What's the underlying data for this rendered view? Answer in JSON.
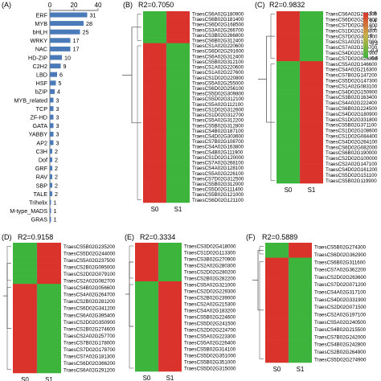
{
  "panels": {
    "A": {
      "letter": "(A)"
    },
    "B": {
      "letter": "(B)",
      "r2": "R2=0.7050",
      "s0": "S0",
      "s1": "S1"
    },
    "C": {
      "letter": "(C)",
      "r2": "R2=0.9832",
      "s0": "S0",
      "s1": "S1"
    },
    "D": {
      "letter": "(D)",
      "r2": "R2=0.9158",
      "s0": "S0",
      "s1": "S1"
    },
    "E": {
      "letter": "(E)",
      "r2": "R2=0.3334",
      "s0": "S0",
      "s1": "S1"
    },
    "F": {
      "letter": "(F)",
      "r2": "R2=0.5889",
      "s0": "S0",
      "s1": "S1"
    }
  },
  "colors": {
    "red": "#d9332b",
    "green": "#3db53d",
    "bar": "#4a7ab7"
  },
  "legend": {
    "ticks": [
      "0.6",
      "0.4",
      "0.2",
      "0",
      "-0.2",
      "-0.4",
      "-0.6"
    ]
  },
  "chart_data": {
    "type": "bar",
    "orientation": "horizontal",
    "categories": [
      "ERF",
      "MYB",
      "bHLH",
      "WRKY",
      "NAC",
      "HD-ZIP",
      "C2H2",
      "LBD",
      "HSF",
      "bZIP",
      "MYB_related",
      "TCP",
      "ZF-HD",
      "GATA",
      "YABBY",
      "AP2",
      "C3H",
      "Dof",
      "GRF",
      "RAV",
      "SBP",
      "TALE",
      "Trihelix",
      "M-type_MADS",
      "GRAS"
    ],
    "values": [
      31,
      28,
      25,
      17,
      17,
      10,
      9,
      6,
      5,
      4,
      3,
      3,
      3,
      3,
      3,
      3,
      2,
      2,
      2,
      2,
      2,
      2,
      1,
      1,
      1
    ],
    "xlim": [
      0,
      40
    ],
    "xticks": [
      "0",
      "20",
      "40"
    ]
  },
  "genes": {
    "B": [
      "TraesCS6A02G180900",
      "TraesCS6B02G181400",
      "TraesCS6D02G168500",
      "TraesCS3A02G266700",
      "TraesCS3B02G266800",
      "TraesCS6B02G312400",
      "TraesCS1A02G220600",
      "TraesCS6D02G291600",
      "TraesCS6A02G312400",
      "TraesCS5B02G312100",
      "TraesCS1A02G220600",
      "TraesCS1A02G227600",
      "TraesCS1D02G220800",
      "TraesCS5A02G255000",
      "TraesCS6D02G256100",
      "TraesCS5D02G309800",
      "TraesCS5D02G312100",
      "TraesCS5A02G112100",
      "TraesCS1D02G312600",
      "TraesCS1D02G312700",
      "TraesCS5A02G312200",
      "TraesCS5B02G312800",
      "TraesCS4B02G187100",
      "TraesCS4D02G303600",
      "TraesCS7B02G108700",
      "TraesCS4A02G163800",
      "TraesCS4B02G111900",
      "TraesCS1D02G120000",
      "TraesCS7A02G268100",
      "TraesCS4A02G128100",
      "TraesCS5A02G226100",
      "TraesCS7D02G312500",
      "TraesCS5B02G312000",
      "TraesCS5D02G111400",
      "TraesCS5B02G121000",
      "TraesCS6D02G121100"
    ],
    "C": [
      "TraesCS6A02G265300",
      "TraesCS6D02G277800",
      "TraesCS7D02G371800",
      "TraesCS1D02G143800",
      "TraesCS7D02G340300",
      "TraesCS1A02G177000",
      "TraesCS7A02G165700",
      "TraesCS4D02G177900",
      "TraesCS7D02G026800",
      "TraesCS5A02G146600",
      "TraesCS4A02G216300",
      "TraesCS7B02G147200",
      "TraesCS5D02G147300",
      "TraesCS1A02G083100",
      "TraesCS4D02G150900",
      "TraesCS3B02G163400",
      "TraesCS4A02G222400",
      "TraesCS6B02G224500",
      "TraesCS4D02G180900",
      "TraesCS1D02G331800",
      "TraesCS5B02G371100",
      "TraesCS1D02G108600",
      "TraesCS1D02G084400",
      "TraesCS4D02G264100",
      "TraesCS6D02G082000",
      "TraesCS6B02G190000",
      "TraesCS2D02G100000",
      "TraesCS2A02G147100",
      "TraesCS4D02G161200",
      "TraesCS5D02G151100",
      "TraesCS5B02G119900"
    ],
    "D": [
      "TraesCS5B02G235200",
      "TraesCS5D02G244000",
      "TraesCS5A02G237500",
      "TraesCS2B02G095000",
      "TraesCS2D02G079100",
      "TraesCS2A02G082700",
      "TraesCS4B02G056600",
      "TraesCS4A02G264700",
      "TraesCS2B02G281200",
      "TraesCS6D02G341200",
      "TraesCS6A02G395400",
      "TraesCS2D02G350900",
      "TraesCS2B02G274600",
      "TraesCS2A02G257700",
      "TraesCS7B02G178000",
      "TraesCS7D02G178700",
      "TraesCS7A02G181300",
      "TraesCS6D02G366200",
      "TraesCS6A02G291200"
    ],
    "E": [
      "TraesCS3D02G418000",
      "TraesCS1D02G113300",
      "TraesCS3B02G270900",
      "TraesCS2A02G280300",
      "TraesCS2D02G280200",
      "TraesCS2B02G282200",
      "TraesCS5A02G321000",
      "TraesCS2D02G229300",
      "TraesCS2B02G239000",
      "TraesCS2A02G215300",
      "TraesCS4A02G183200",
      "TraesCS5B02G224600",
      "TraesCS5D02G241500",
      "TraesCS2D02G224700",
      "TraesCS5A02G223300",
      "TraesCS5A02G226400",
      "TraesCS5B02G314100",
      "TraesCS5D02G351000",
      "TraesCS5B02G351000",
      "TraesCS5D02G315000"
    ],
    "F": [
      "TraesCS5B02G274300",
      "TraesCS6D02G362900",
      "TraesCS6B02G311600",
      "TraesCS7A02G362200",
      "TraesCS2D02G263600",
      "TraesCS7D02G071200",
      "TraesCS4A02G317100",
      "TraesCS4D02G331900",
      "TraesCS2D02G071500",
      "TraesCS2A02G197100",
      "TraesCS5A02G240500",
      "TraesCS4B02G215500",
      "TraesCS7B02G242000",
      "TraesCS4B02G242800",
      "TraesCS2B02G264900",
      "TraesCS5D02G274900"
    ]
  }
}
